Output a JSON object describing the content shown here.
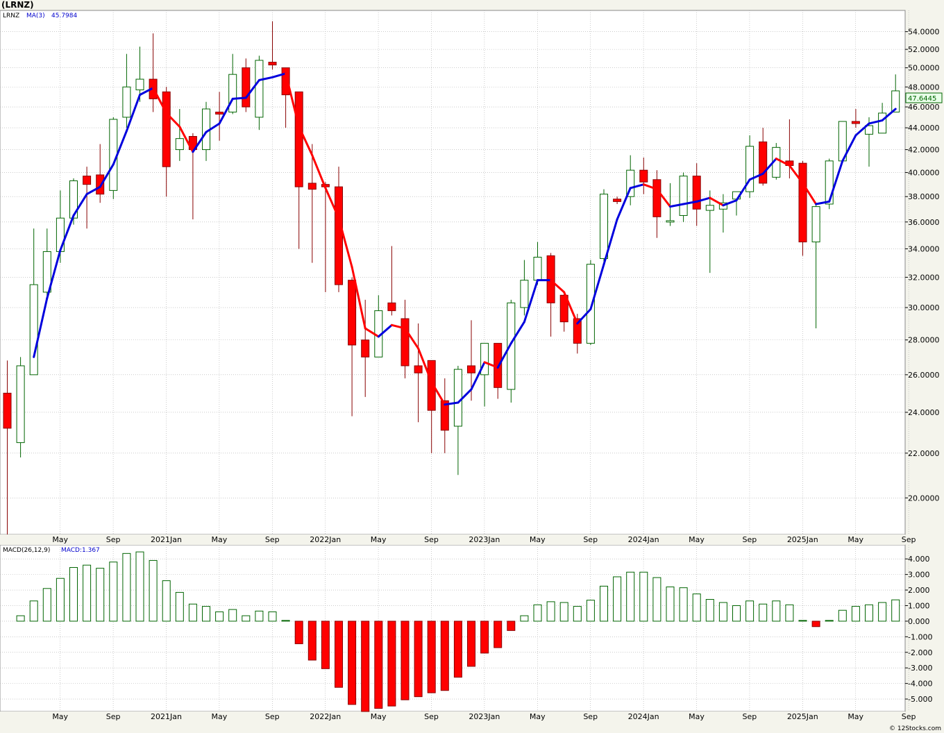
{
  "title": "(LRNZ)",
  "price_panel": {
    "symbol_label": "LRNZ",
    "ma_label": "MA(3)",
    "ma_value": "45.7984",
    "last_price": "47.6445"
  },
  "macd_panel": {
    "label": "MACD(26,12,9)",
    "value_label": "MACD:1.367"
  },
  "footer": "© 12Stocks.com",
  "colors": {
    "up": "#ffffff",
    "up_stroke": "#006400",
    "down": "#ff0000",
    "ma_up": "#0000dd",
    "ma_down": "#ff0000",
    "macd_pos": "#006400",
    "macd_neg": "#ff0000",
    "grid": "#aaaaaa",
    "panel_bg": "#ffffff"
  },
  "chart_data": [
    {
      "type": "candlestick",
      "interval": "monthly",
      "scale": "log",
      "ylim": [
        18.5,
        56.5
      ],
      "y_ticks": [
        20,
        22,
        24,
        26,
        28,
        30,
        32,
        34,
        36,
        38,
        40,
        42,
        44,
        46,
        48,
        50,
        52,
        54
      ],
      "y_tick_labels": [
        "20.0000",
        "22.0000",
        "24.0000",
        "26.0000",
        "28.0000",
        "30.0000",
        "32.0000",
        "34.0000",
        "36.0000",
        "38.0000",
        "40.0000",
        "42.0000",
        "44.0000",
        "46.0000",
        "48.0000",
        "50.0000",
        "52.0000",
        "54.0000"
      ],
      "x_labels": [
        {
          "label": "May",
          "index": 2
        },
        {
          "label": "Sep",
          "index": 6
        },
        {
          "label": "2021Jan",
          "index": 10
        },
        {
          "label": "May",
          "index": 14
        },
        {
          "label": "Sep",
          "index": 18
        },
        {
          "label": "2022Jan",
          "index": 22
        },
        {
          "label": "May",
          "index": 26
        },
        {
          "label": "Sep",
          "index": 30
        },
        {
          "label": "2023Jan",
          "index": 34
        },
        {
          "label": "May",
          "index": 38
        },
        {
          "label": "Sep",
          "index": 42
        },
        {
          "label": "2024Jan",
          "index": 46
        },
        {
          "label": "May",
          "index": 50
        },
        {
          "label": "Sep",
          "index": 54
        },
        {
          "label": "2025Jan",
          "index": 58
        },
        {
          "label": "May",
          "index": 62
        },
        {
          "label": "Sep",
          "index": 66
        }
      ],
      "candles": [
        {
          "o": 25.0,
          "h": 26.8,
          "l": 18.5,
          "c": 23.2
        },
        {
          "o": 22.5,
          "h": 27.0,
          "l": 21.8,
          "c": 26.5
        },
        {
          "o": 26.0,
          "h": 35.5,
          "l": 26.0,
          "c": 31.5
        },
        {
          "o": 31.0,
          "h": 35.5,
          "l": 30.5,
          "c": 33.8
        },
        {
          "o": 33.8,
          "h": 38.5,
          "l": 33.0,
          "c": 36.3
        },
        {
          "o": 36.3,
          "h": 39.5,
          "l": 35.8,
          "c": 39.3
        },
        {
          "o": 39.7,
          "h": 40.5,
          "l": 35.5,
          "c": 39.0
        },
        {
          "o": 39.8,
          "h": 42.5,
          "l": 37.5,
          "c": 38.2
        },
        {
          "o": 38.5,
          "h": 45.0,
          "l": 37.8,
          "c": 44.8
        },
        {
          "o": 45.0,
          "h": 51.5,
          "l": 44.0,
          "c": 48.0
        },
        {
          "o": 47.7,
          "h": 52.3,
          "l": 46.5,
          "c": 48.8
        },
        {
          "o": 48.8,
          "h": 53.8,
          "l": 45.5,
          "c": 46.8
        },
        {
          "o": 47.5,
          "h": 48.0,
          "l": 38.0,
          "c": 40.5
        },
        {
          "o": 42.0,
          "h": 45.8,
          "l": 41.0,
          "c": 43.0
        },
        {
          "o": 43.2,
          "h": 43.5,
          "l": 36.2,
          "c": 42.0
        },
        {
          "o": 42.0,
          "h": 46.5,
          "l": 41.0,
          "c": 45.8
        },
        {
          "o": 45.5,
          "h": 47.5,
          "l": 42.8,
          "c": 45.3
        },
        {
          "o": 45.5,
          "h": 51.5,
          "l": 45.3,
          "c": 49.3
        },
        {
          "o": 50.0,
          "h": 51.0,
          "l": 45.5,
          "c": 46.0
        },
        {
          "o": 45.0,
          "h": 51.3,
          "l": 43.8,
          "c": 50.8
        },
        {
          "o": 50.6,
          "h": 55.2,
          "l": 49.8,
          "c": 50.3
        },
        {
          "o": 50.0,
          "h": 50.0,
          "l": 44.0,
          "c": 47.2
        },
        {
          "o": 47.5,
          "h": 47.5,
          "l": 34.0,
          "c": 38.8
        },
        {
          "o": 39.1,
          "h": 42.5,
          "l": 33.0,
          "c": 38.6
        },
        {
          "o": 39.0,
          "h": 39.2,
          "l": 31.0,
          "c": 38.8
        },
        {
          "o": 38.8,
          "h": 40.5,
          "l": 31.0,
          "c": 31.5
        },
        {
          "o": 31.8,
          "h": 32.0,
          "l": 23.8,
          "c": 27.7
        },
        {
          "o": 28.0,
          "h": 30.5,
          "l": 24.8,
          "c": 27.0
        },
        {
          "o": 27.0,
          "h": 30.8,
          "l": 27.0,
          "c": 29.8
        },
        {
          "o": 30.3,
          "h": 34.2,
          "l": 29.5,
          "c": 29.8
        },
        {
          "o": 29.3,
          "h": 30.5,
          "l": 25.8,
          "c": 26.5
        },
        {
          "o": 26.5,
          "h": 29.0,
          "l": 23.5,
          "c": 26.1
        },
        {
          "o": 26.8,
          "h": 26.8,
          "l": 22.0,
          "c": 24.1
        },
        {
          "o": 24.6,
          "h": 25.8,
          "l": 22.0,
          "c": 23.1
        },
        {
          "o": 23.3,
          "h": 26.5,
          "l": 21.0,
          "c": 26.3
        },
        {
          "o": 26.5,
          "h": 29.2,
          "l": 24.6,
          "c": 26.1
        },
        {
          "o": 26.0,
          "h": 27.8,
          "l": 24.3,
          "c": 27.8
        },
        {
          "o": 27.8,
          "h": 27.8,
          "l": 24.7,
          "c": 25.3
        },
        {
          "o": 25.2,
          "h": 30.5,
          "l": 24.5,
          "c": 30.3
        },
        {
          "o": 30.0,
          "h": 33.2,
          "l": 29.5,
          "c": 31.8
        },
        {
          "o": 31.8,
          "h": 34.5,
          "l": 31.5,
          "c": 33.4
        },
        {
          "o": 33.5,
          "h": 33.7,
          "l": 28.2,
          "c": 30.3
        },
        {
          "o": 30.8,
          "h": 31.0,
          "l": 28.5,
          "c": 29.1
        },
        {
          "o": 29.3,
          "h": 29.6,
          "l": 27.2,
          "c": 27.8
        },
        {
          "o": 27.8,
          "h": 33.2,
          "l": 27.7,
          "c": 32.9
        },
        {
          "o": 33.3,
          "h": 38.6,
          "l": 33.0,
          "c": 38.2
        },
        {
          "o": 37.8,
          "h": 38.0,
          "l": 37.4,
          "c": 37.6
        },
        {
          "o": 38.0,
          "h": 41.5,
          "l": 37.3,
          "c": 40.2
        },
        {
          "o": 40.2,
          "h": 41.3,
          "l": 38.2,
          "c": 39.2
        },
        {
          "o": 39.4,
          "h": 40.2,
          "l": 34.8,
          "c": 36.4
        },
        {
          "o": 36.1,
          "h": 39.1,
          "l": 35.7,
          "c": 36.1
        },
        {
          "o": 36.5,
          "h": 40.0,
          "l": 36.0,
          "c": 39.7
        },
        {
          "o": 39.7,
          "h": 40.8,
          "l": 35.7,
          "c": 37.0
        },
        {
          "o": 36.9,
          "h": 38.5,
          "l": 32.3,
          "c": 37.3
        },
        {
          "o": 37.0,
          "h": 38.2,
          "l": 35.2,
          "c": 37.5
        },
        {
          "o": 37.8,
          "h": 38.3,
          "l": 36.5,
          "c": 38.4
        },
        {
          "o": 38.4,
          "h": 43.3,
          "l": 37.9,
          "c": 42.3
        },
        {
          "o": 42.7,
          "h": 44.0,
          "l": 38.9,
          "c": 39.1
        },
        {
          "o": 39.6,
          "h": 42.6,
          "l": 39.4,
          "c": 42.2
        },
        {
          "o": 41.0,
          "h": 44.8,
          "l": 39.5,
          "c": 40.6
        },
        {
          "o": 40.8,
          "h": 41.0,
          "l": 33.5,
          "c": 34.5
        },
        {
          "o": 34.5,
          "h": 37.5,
          "l": 28.7,
          "c": 37.2
        },
        {
          "o": 37.4,
          "h": 41.2,
          "l": 37.0,
          "c": 41.0
        },
        {
          "o": 41.0,
          "h": 44.6,
          "l": 41.0,
          "c": 44.6
        },
        {
          "o": 44.6,
          "h": 45.8,
          "l": 44.0,
          "c": 44.4
        },
        {
          "o": 43.4,
          "h": 45.0,
          "l": 40.5,
          "c": 44.2
        },
        {
          "o": 43.5,
          "h": 46.4,
          "l": 43.5,
          "c": 45.4
        },
        {
          "o": 45.5,
          "h": 49.3,
          "l": 45.5,
          "c": 47.6
        }
      ],
      "ma3": [
        null,
        null,
        27.0,
        30.6,
        33.9,
        36.5,
        38.2,
        38.8,
        40.7,
        43.7,
        47.2,
        47.9,
        45.4,
        44.1,
        41.8,
        43.6,
        44.4,
        46.8,
        46.9,
        48.7,
        49.0,
        49.4,
        44.1,
        41.5,
        38.7,
        36.3,
        32.7,
        28.7,
        28.2,
        28.9,
        28.7,
        27.5,
        25.6,
        24.4,
        24.5,
        25.2,
        26.7,
        26.4,
        27.8,
        29.1,
        31.8,
        31.8,
        31.0,
        29.0,
        29.9,
        32.9,
        36.2,
        38.7,
        39.0,
        38.6,
        37.2,
        37.4,
        37.6,
        37.9,
        37.3,
        37.7,
        39.4,
        39.9,
        41.2,
        40.6,
        39.1,
        37.4,
        37.6,
        41.0,
        43.3,
        44.4,
        44.7,
        45.8
      ],
      "macd": [
        null,
        0.35,
        1.3,
        2.1,
        2.75,
        3.45,
        3.6,
        3.4,
        3.8,
        4.35,
        4.45,
        3.9,
        2.6,
        1.85,
        1.1,
        0.95,
        0.6,
        0.75,
        0.35,
        0.65,
        0.6,
        0.05,
        -1.45,
        -2.5,
        -3.05,
        -4.25,
        -5.35,
        -5.8,
        -5.6,
        -5.45,
        -5.05,
        -4.85,
        -4.6,
        -4.45,
        -3.6,
        -2.9,
        -2.05,
        -1.7,
        -0.6,
        0.35,
        1.05,
        1.25,
        1.2,
        0.95,
        1.35,
        2.25,
        2.85,
        3.15,
        3.15,
        2.8,
        2.2,
        2.15,
        1.75,
        1.4,
        1.2,
        1.0,
        1.3,
        1.1,
        1.3,
        1.05,
        0.05,
        -0.35,
        0.05,
        0.7,
        0.95,
        1.05,
        1.2,
        1.37
      ],
      "macd_ylim": [
        -5.8,
        4.9
      ],
      "macd_ticks": [
        4,
        3,
        2,
        1,
        0,
        -1,
        -2,
        -3,
        -4,
        -5
      ],
      "macd_tick_labels": [
        "4.000",
        "3.000",
        "2.000",
        "1.000",
        "0.000",
        "-1.000",
        "-2.000",
        "-3.000",
        "-4.000",
        "-5.000"
      ]
    }
  ]
}
